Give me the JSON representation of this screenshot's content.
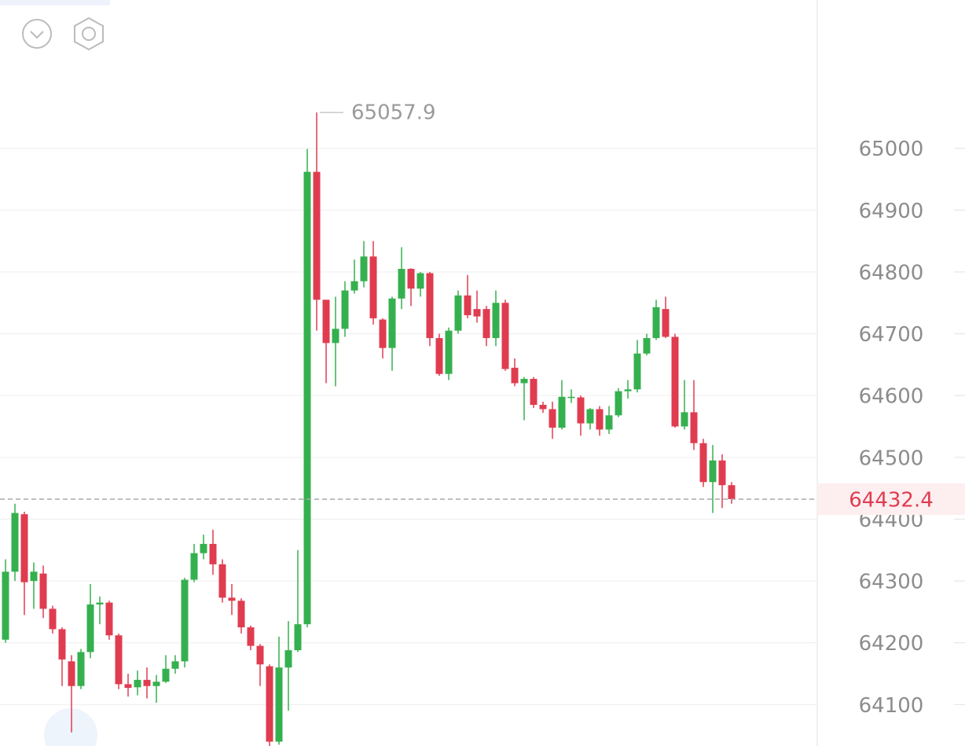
{
  "chart_data": {
    "type": "candlestick",
    "up_color": "#35b04f",
    "down_color": "#e03c50",
    "ylim": [
      64033,
      65240
    ],
    "yticks": [
      64100,
      64200,
      64300,
      64400,
      64500,
      64600,
      64700,
      64800,
      64900,
      65000
    ],
    "grid": true,
    "high_marker": 65057.9,
    "last_price": 64432.4,
    "series": {
      "open": [
        64205,
        64315,
        64408,
        64300,
        64312,
        64255,
        64222,
        64170,
        64130,
        64185,
        64262,
        64265,
        64212,
        64133,
        64128,
        64140,
        64130,
        64137,
        64158,
        64170,
        64302,
        64345,
        64360,
        64327,
        64273,
        64268,
        64225,
        64195,
        64162,
        64040,
        64160,
        64188,
        64230,
        64962,
        64755,
        64685,
        64708,
        64770,
        64785,
        64825,
        64723,
        64677,
        64757,
        64805,
        64773,
        64798,
        64693,
        64635,
        64705,
        64762,
        64740,
        64740,
        64693,
        64750,
        64645,
        64620,
        64627,
        64585,
        64578,
        64548,
        64596,
        64597,
        64555,
        64578,
        64545,
        64568,
        64607,
        64610,
        64668,
        64693,
        64740,
        64695,
        64550,
        64573,
        64523,
        64460,
        64495,
        64455
      ],
      "high": [
        64335,
        64425,
        64412,
        64330,
        64325,
        64260,
        64225,
        64180,
        64190,
        64295,
        64275,
        64268,
        64215,
        64150,
        64155,
        64160,
        64148,
        64180,
        64180,
        64305,
        64360,
        64375,
        64383,
        64335,
        64295,
        64272,
        64228,
        64198,
        64165,
        64210,
        64235,
        64350,
        64999,
        65057.9,
        64755,
        64760,
        64785,
        64820,
        64850,
        64850,
        64725,
        64760,
        64840,
        64806,
        64800,
        64800,
        64700,
        64710,
        64770,
        64795,
        64770,
        64745,
        64770,
        64755,
        64660,
        64630,
        64630,
        64590,
        64590,
        64625,
        64610,
        64600,
        64580,
        64583,
        64583,
        64612,
        64625,
        64690,
        64700,
        64755,
        64760,
        64700,
        64625,
        64625,
        64530,
        64520,
        64505,
        64460
      ],
      "low": [
        64200,
        64300,
        64245,
        64255,
        64240,
        64215,
        64130,
        64055,
        64125,
        64175,
        64230,
        64205,
        64125,
        64113,
        64115,
        64110,
        64103,
        64135,
        64150,
        64160,
        64298,
        64335,
        64310,
        64265,
        64245,
        64215,
        64188,
        64130,
        64030,
        64035,
        64090,
        64185,
        64225,
        64705,
        64620,
        64615,
        64695,
        64765,
        64775,
        64715,
        64660,
        64640,
        64740,
        64745,
        64760,
        64680,
        64632,
        64625,
        64700,
        64725,
        64718,
        64680,
        64680,
        64640,
        64615,
        64560,
        64580,
        64572,
        64530,
        64545,
        64588,
        64535,
        64545,
        64535,
        64538,
        64565,
        64595,
        64605,
        64665,
        64690,
        64693,
        64548,
        64545,
        64512,
        64452,
        64410,
        64418,
        64425
      ],
      "close": [
        64315,
        64410,
        64298,
        64315,
        64255,
        64222,
        64173,
        64130,
        64185,
        64262,
        64265,
        64212,
        64133,
        64127,
        64140,
        64130,
        64137,
        64158,
        64170,
        64302,
        64345,
        64360,
        64327,
        64273,
        64268,
        64225,
        64195,
        64165,
        64040,
        64160,
        64188,
        64230,
        64962,
        64755,
        64685,
        64708,
        64770,
        64785,
        64825,
        64725,
        64677,
        64757,
        64805,
        64773,
        64798,
        64693,
        64635,
        64705,
        64762,
        64730,
        64728,
        64693,
        64750,
        64643,
        64620,
        64627,
        64585,
        64578,
        64548,
        64598,
        64598,
        64555,
        64578,
        64545,
        64568,
        64607,
        64610,
        64668,
        64693,
        64743,
        64695,
        64550,
        64573,
        64523,
        64460,
        64495,
        64455,
        64432.4
      ]
    }
  }
}
